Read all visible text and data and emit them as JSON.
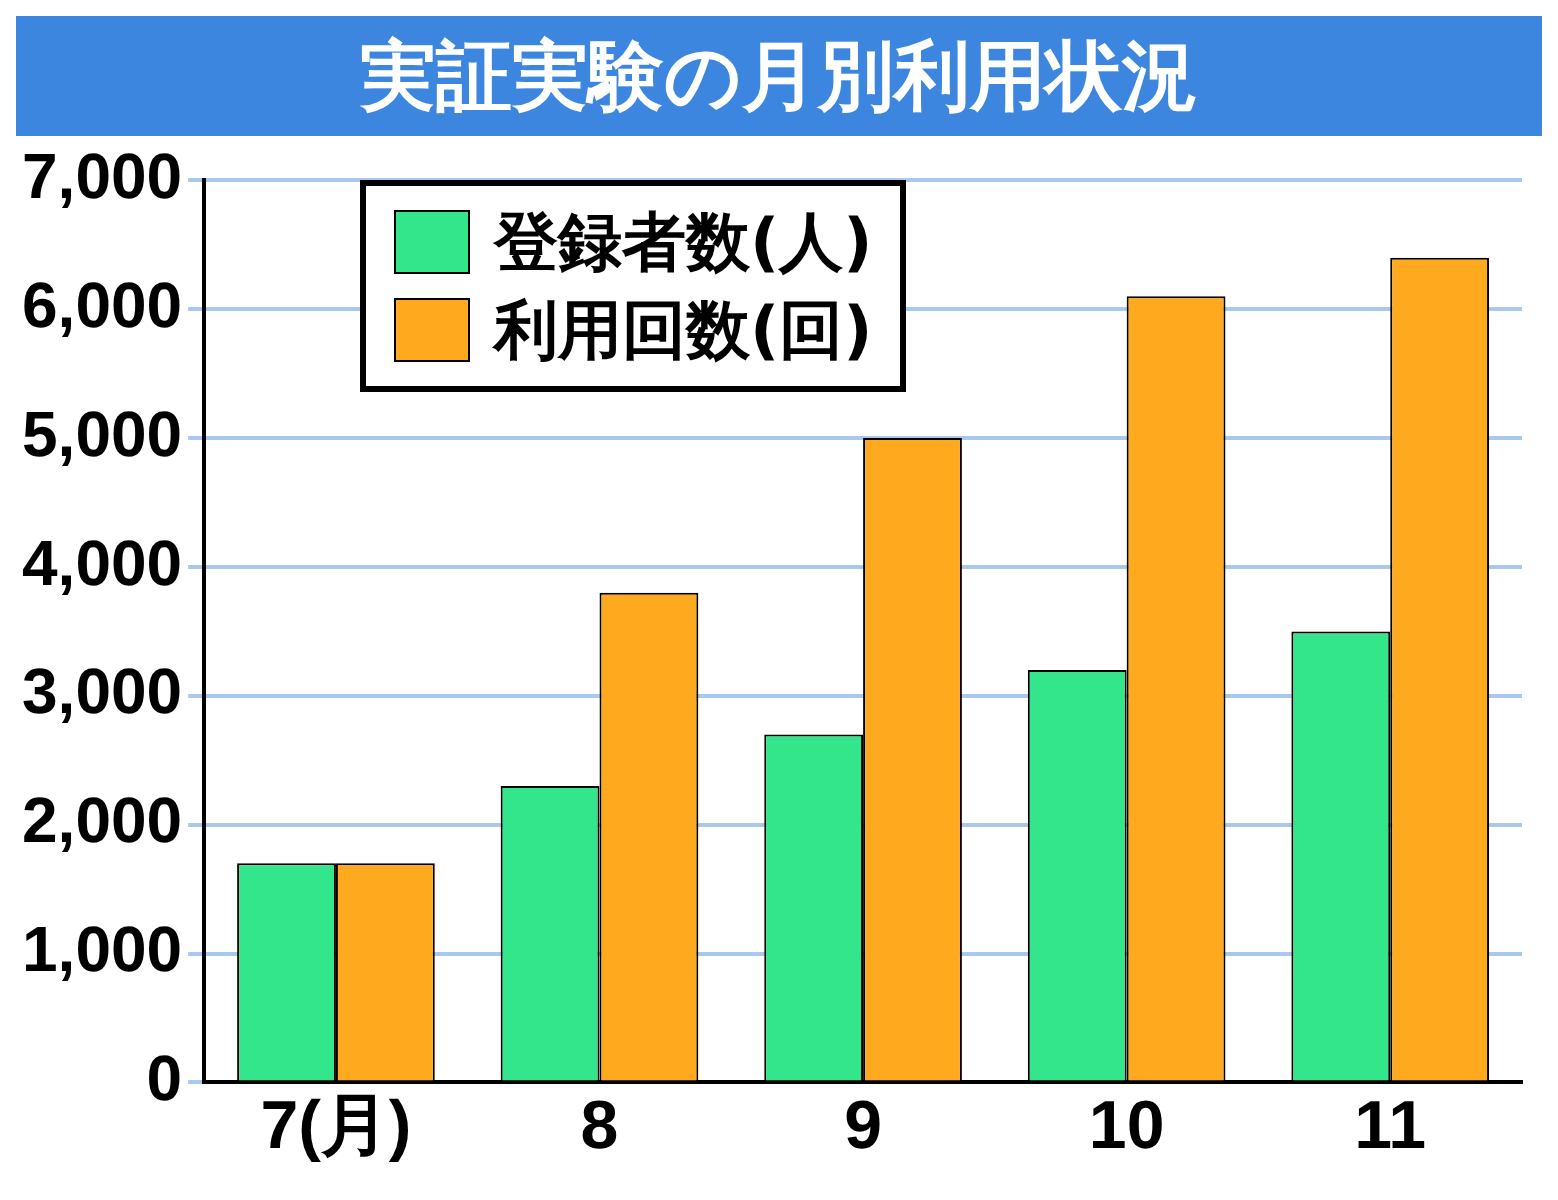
{
  "chart_data": {
    "type": "bar",
    "title": "実証実験の月別利用状況",
    "categories": [
      "7(月)",
      "8",
      "9",
      "10",
      "11"
    ],
    "series": [
      {
        "name": "登録者数(人)",
        "color": "#33e68c",
        "values": [
          1700,
          2300,
          2700,
          3200,
          3500
        ]
      },
      {
        "name": "利用回数(回)",
        "color": "#ffa91f",
        "values": [
          1700,
          3800,
          5000,
          6100,
          6400
        ]
      }
    ],
    "ylim": [
      0,
      7000
    ],
    "yticks": [
      {
        "value": 0,
        "label": "0"
      },
      {
        "value": 1000,
        "label": "1,000"
      },
      {
        "value": 2000,
        "label": "2,000"
      },
      {
        "value": 3000,
        "label": "3,000"
      },
      {
        "value": 4000,
        "label": "4,000"
      },
      {
        "value": 5000,
        "label": "5,000"
      },
      {
        "value": 6000,
        "label": "6,000"
      },
      {
        "value": 7000,
        "label": "7,000"
      }
    ],
    "grid": "y",
    "legend": "top left"
  }
}
